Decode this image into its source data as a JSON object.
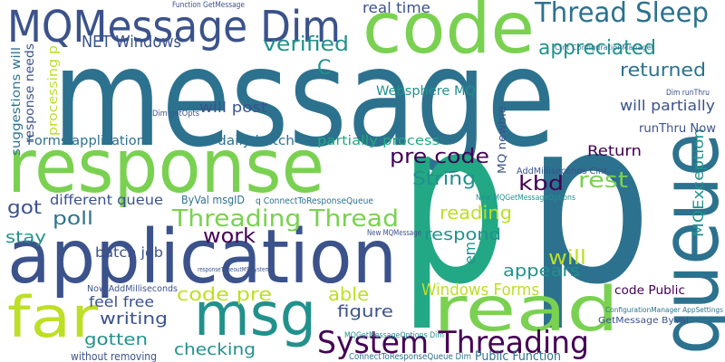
{
  "words": [
    "message",
    "response",
    "application",
    "p",
    "p",
    "queue",
    "code",
    "MQMessage Dim",
    "Thread Sleep",
    "read",
    "msg",
    "far",
    "System Threading",
    "Threading Thread",
    "appreciated",
    "returned",
    "verified",
    "NET Windows",
    "real time",
    "C",
    "Websphere MQ",
    "will post",
    "will partially",
    "pre code",
    "Return",
    "kbd",
    "String",
    "rest",
    "MQException",
    "Forms application",
    "daily batch",
    "partially process",
    "got",
    "different queue",
    "poll",
    "work",
    "reading",
    "respond",
    "stay",
    "batch job",
    "will",
    "appears",
    "able",
    "Windows Forms",
    "code pre",
    "figure",
    "writing",
    "feel free",
    "gotten",
    "checking",
    "without removing",
    "Public Function",
    "code Public",
    "em",
    "runThru Now",
    "Now AddMilliseconds",
    "ByVal msgID",
    "q ConnectToResponseQueue",
    "AddMilliseconds CInt",
    "GetMessage ByVal",
    "ConfigurationManager AppSettings",
    "ConnectToResponseQueue Dim",
    "MQGetMessageOptions Dim",
    "New MQGetMessageOptions",
    "New MQMessage",
    "Function GetMessage",
    "Dim getOpts",
    "CInt ConfigurationManager",
    "Dim runThru",
    "suggestions will",
    "response needs",
    "processing p",
    "MQ newbie",
    "responseTimeoutMS System"
  ]
}
